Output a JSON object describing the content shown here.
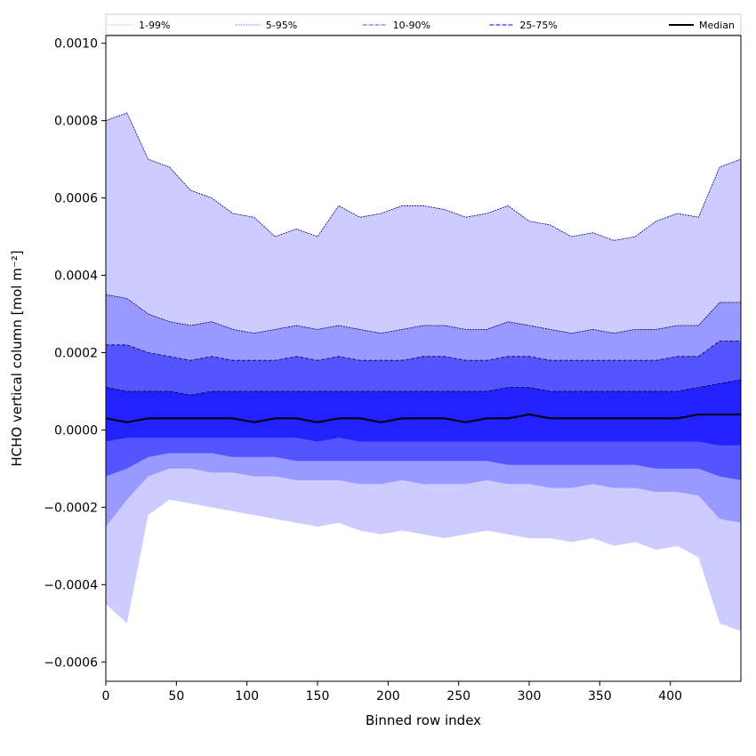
{
  "chart_data": {
    "type": "area",
    "xlabel": "Binned row index",
    "ylabel": "HCHO vertical column [mol m⁻²]",
    "xlim": [
      0,
      450
    ],
    "ylim": [
      -0.00065,
      0.00102
    ],
    "x_ticks": [
      {
        "value": 0,
        "label": "0"
      },
      {
        "value": 50,
        "label": "50"
      },
      {
        "value": 100,
        "label": "100"
      },
      {
        "value": 150,
        "label": "150"
      },
      {
        "value": 200,
        "label": "200"
      },
      {
        "value": 250,
        "label": "250"
      },
      {
        "value": 300,
        "label": "300"
      },
      {
        "value": 350,
        "label": "350"
      },
      {
        "value": 400,
        "label": "400"
      }
    ],
    "y_ticks": [
      {
        "value": -0.0006,
        "label": "−0.0006"
      },
      {
        "value": -0.0004,
        "label": "−0.0004"
      },
      {
        "value": -0.0002,
        "label": "−0.0002"
      },
      {
        "value": 0.0,
        "label": "0.0000"
      },
      {
        "value": 0.0002,
        "label": "0.0002"
      },
      {
        "value": 0.0004,
        "label": "0.0004"
      },
      {
        "value": 0.0006,
        "label": "0.0006"
      },
      {
        "value": 0.0008,
        "label": "0.0008"
      },
      {
        "value": 0.001,
        "label": "0.0010"
      }
    ],
    "legend": {
      "placement": "top",
      "entries": [
        {
          "label": "1-99%",
          "color": "#c8c8c8",
          "style": "dotted"
        },
        {
          "label": "5-95%",
          "color": "#8888ff",
          "style": "dotted"
        },
        {
          "label": "10-90%",
          "color": "#7777ff",
          "style": "dashed"
        },
        {
          "label": "25-75%",
          "color": "#3333ff",
          "style": "dashed"
        },
        {
          "label": "Median",
          "color": "#000000",
          "style": "solid"
        }
      ]
    },
    "x": [
      0,
      15,
      30,
      45,
      60,
      75,
      90,
      105,
      120,
      135,
      150,
      165,
      180,
      195,
      210,
      225,
      240,
      255,
      270,
      285,
      300,
      315,
      330,
      345,
      360,
      375,
      390,
      405,
      420,
      435,
      450
    ],
    "bands": [
      {
        "name": "1-99%",
        "fill": "#ccccff",
        "edge": "#000088",
        "upper": [
          0.0008,
          0.00082,
          0.0007,
          0.00068,
          0.00062,
          0.0006,
          0.00056,
          0.00055,
          0.0005,
          0.00052,
          0.0005,
          0.00058,
          0.00055,
          0.00056,
          0.00058,
          0.00058,
          0.00057,
          0.00055,
          0.00056,
          0.00058,
          0.00054,
          0.00053,
          0.0005,
          0.00051,
          0.00049,
          0.0005,
          0.00054,
          0.00056,
          0.00055,
          0.00068,
          0.0007
        ],
        "lower": [
          -0.00045,
          -0.0005,
          -0.00022,
          -0.00018,
          -0.00019,
          -0.0002,
          -0.00021,
          -0.00022,
          -0.00023,
          -0.00024,
          -0.00025,
          -0.00024,
          -0.00026,
          -0.00027,
          -0.00026,
          -0.00027,
          -0.00028,
          -0.00027,
          -0.00026,
          -0.00027,
          -0.00028,
          -0.00028,
          -0.00029,
          -0.00028,
          -0.0003,
          -0.00029,
          -0.00031,
          -0.0003,
          -0.00033,
          -0.0005,
          -0.00052
        ]
      },
      {
        "name": "5-95%",
        "fill": "#9999ff",
        "edge": "#000066",
        "upper": [
          0.00035,
          0.00034,
          0.0003,
          0.00028,
          0.00027,
          0.00028,
          0.00026,
          0.00025,
          0.00026,
          0.00027,
          0.00026,
          0.00027,
          0.00026,
          0.00025,
          0.00026,
          0.00027,
          0.00027,
          0.00026,
          0.00026,
          0.00028,
          0.00027,
          0.00026,
          0.00025,
          0.00026,
          0.00025,
          0.00026,
          0.00026,
          0.00027,
          0.00027,
          0.00033,
          0.00033
        ],
        "lower": [
          -0.00025,
          -0.00018,
          -0.00012,
          -0.0001,
          -0.0001,
          -0.00011,
          -0.00011,
          -0.00012,
          -0.00012,
          -0.00013,
          -0.00013,
          -0.00013,
          -0.00014,
          -0.00014,
          -0.00013,
          -0.00014,
          -0.00014,
          -0.00014,
          -0.00013,
          -0.00014,
          -0.00014,
          -0.00015,
          -0.00015,
          -0.00014,
          -0.00015,
          -0.00015,
          -0.00016,
          -0.00016,
          -0.00017,
          -0.00023,
          -0.00024
        ]
      },
      {
        "name": "10-90%",
        "fill": "#5555ff",
        "edge": "#000044",
        "upper": [
          0.00022,
          0.00022,
          0.0002,
          0.00019,
          0.00018,
          0.00019,
          0.00018,
          0.00018,
          0.00018,
          0.00019,
          0.00018,
          0.00019,
          0.00018,
          0.00018,
          0.00018,
          0.00019,
          0.00019,
          0.00018,
          0.00018,
          0.00019,
          0.00019,
          0.00018,
          0.00018,
          0.00018,
          0.00018,
          0.00018,
          0.00018,
          0.00019,
          0.00019,
          0.00023,
          0.00023
        ],
        "lower": [
          -0.00012,
          -0.0001,
          -7e-05,
          -6e-05,
          -6e-05,
          -6e-05,
          -7e-05,
          -7e-05,
          -7e-05,
          -8e-05,
          -8e-05,
          -8e-05,
          -8e-05,
          -8e-05,
          -8e-05,
          -8e-05,
          -8e-05,
          -8e-05,
          -8e-05,
          -9e-05,
          -9e-05,
          -9e-05,
          -9e-05,
          -9e-05,
          -9e-05,
          -9e-05,
          -0.0001,
          -0.0001,
          -0.0001,
          -0.00012,
          -0.00013
        ]
      },
      {
        "name": "25-75%",
        "fill": "#2222ff",
        "edge": "#000022",
        "upper": [
          0.00011,
          0.0001,
          0.0001,
          0.0001,
          9e-05,
          0.0001,
          0.0001,
          0.0001,
          0.0001,
          0.0001,
          0.0001,
          0.0001,
          0.0001,
          0.0001,
          0.0001,
          0.0001,
          0.0001,
          0.0001,
          0.0001,
          0.00011,
          0.00011,
          0.0001,
          0.0001,
          0.0001,
          0.0001,
          0.0001,
          0.0001,
          0.0001,
          0.00011,
          0.00012,
          0.00013
        ],
        "lower": [
          -3e-05,
          -2e-05,
          -2e-05,
          -2e-05,
          -2e-05,
          -2e-05,
          -2e-05,
          -2e-05,
          -2e-05,
          -2e-05,
          -3e-05,
          -2e-05,
          -3e-05,
          -3e-05,
          -3e-05,
          -3e-05,
          -3e-05,
          -3e-05,
          -3e-05,
          -3e-05,
          -3e-05,
          -3e-05,
          -3e-05,
          -3e-05,
          -3e-05,
          -3e-05,
          -3e-05,
          -3e-05,
          -3e-05,
          -4e-05,
          -4e-05
        ]
      }
    ],
    "median": [
      3e-05,
      2e-05,
      3e-05,
      3e-05,
      3e-05,
      3e-05,
      3e-05,
      2e-05,
      3e-05,
      3e-05,
      2e-05,
      3e-05,
      3e-05,
      2e-05,
      3e-05,
      3e-05,
      3e-05,
      2e-05,
      3e-05,
      3e-05,
      4e-05,
      3e-05,
      3e-05,
      3e-05,
      3e-05,
      3e-05,
      3e-05,
      3e-05,
      4e-05,
      4e-05,
      4e-05
    ]
  }
}
